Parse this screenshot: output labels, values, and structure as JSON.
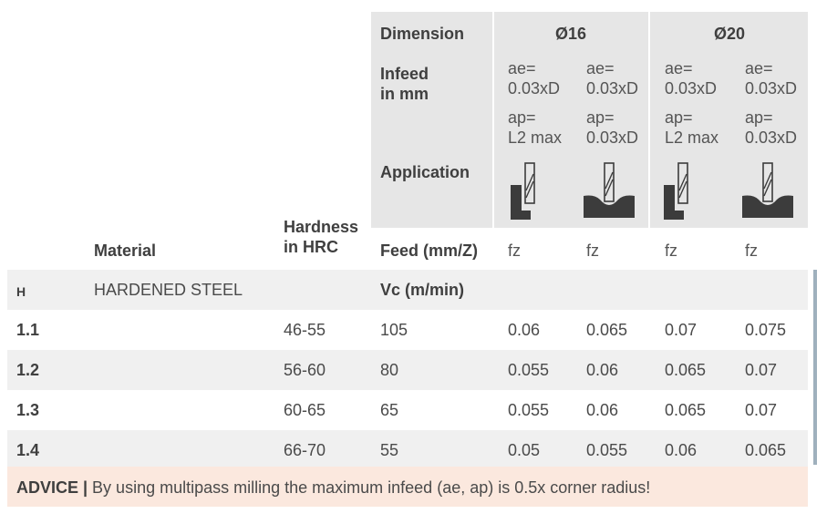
{
  "header": {
    "dimension_label": "Dimension",
    "d16": "Ø16",
    "d20": "Ø20",
    "infeed_line1": "Infeed",
    "infeed_line2": "in mm",
    "application_label": "Application",
    "ae": [
      "ae=",
      "ae=",
      "ae=",
      "ae="
    ],
    "ae_val": [
      "0.03xD",
      "0.03xD",
      "0.03xD",
      "0.03xD"
    ],
    "ap": [
      "ap=",
      "ap=",
      "ap=",
      "ap="
    ],
    "ap_val": [
      "L2 max",
      "0.03xD",
      "L2 max",
      "0.03xD"
    ],
    "application_icons": [
      "shoulder-milling-icon",
      "profile-milling-icon",
      "shoulder-milling-icon",
      "profile-milling-icon"
    ]
  },
  "columns": {
    "material": "Material",
    "hardness_line1": "Hardness",
    "hardness_line2": "in HRC",
    "feed": "Feed (mm/Z)",
    "fz": [
      "fz",
      "fz",
      "fz",
      "fz"
    ]
  },
  "group": {
    "code": "H",
    "name": "HARDENED STEEL",
    "vc_label": "Vc (m/min)"
  },
  "rows": [
    {
      "id": "1.1",
      "hrc": "46-55",
      "vc": "105",
      "fz": [
        "0.06",
        "0.065",
        "0.07",
        "0.075"
      ]
    },
    {
      "id": "1.2",
      "hrc": "56-60",
      "vc": "80",
      "fz": [
        "0.055",
        "0.06",
        "0.065",
        "0.07"
      ]
    },
    {
      "id": "1.3",
      "hrc": "60-65",
      "vc": "65",
      "fz": [
        "0.055",
        "0.06",
        "0.065",
        "0.07"
      ]
    },
    {
      "id": "1.4",
      "hrc": "66-70",
      "vc": "55",
      "fz": [
        "0.05",
        "0.055",
        "0.06",
        "0.065"
      ]
    }
  ],
  "advice": {
    "label": "ADVICE |",
    "text": " By using multipass milling the maximum infeed (ae, ap) is 0.5x corner radius!"
  },
  "colors": {
    "header_grey": "#e6e6e6",
    "row_shade": "#f0f0f0",
    "advice_bg": "#fbe8de",
    "sidebar_blue": "#9fb0bd"
  }
}
